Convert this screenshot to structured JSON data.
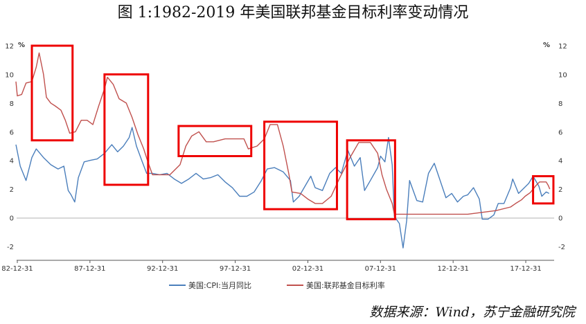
{
  "title": "图 1:1982-2019 年美国联邦基金目标利率变动情况",
  "source": "数据来源：Wind，苏宁金融研究院",
  "chart_data": {
    "type": "line",
    "title": "图 1:1982-2019 年美国联邦基金目标利率变动情况",
    "y_unit": "%",
    "ylim": [
      -2.5,
      12
    ],
    "y_ticks": [
      -2,
      0,
      2,
      4,
      6,
      8,
      10,
      12
    ],
    "x_ticks": [
      "82-12-31",
      "87-12-31",
      "92-12-31",
      "97-12-31",
      "02-12-31",
      "07-12-31",
      "12-12-31",
      "17-12-31"
    ],
    "grid": false,
    "legend_position": "bottom",
    "series": [
      {
        "name": "美国:CPI:当月同比",
        "color": "#4a7ebb",
        "points": [
          [
            1982.9,
            5.1
          ],
          [
            1983.2,
            3.6
          ],
          [
            1983.6,
            2.6
          ],
          [
            1984.0,
            4.2
          ],
          [
            1984.3,
            4.8
          ],
          [
            1984.8,
            4.2
          ],
          [
            1985.3,
            3.7
          ],
          [
            1985.8,
            3.4
          ],
          [
            1986.2,
            3.6
          ],
          [
            1986.5,
            1.9
          ],
          [
            1986.7,
            1.6
          ],
          [
            1986.95,
            1.1
          ],
          [
            1987.2,
            2.8
          ],
          [
            1987.6,
            3.9
          ],
          [
            1988.0,
            4.0
          ],
          [
            1988.5,
            4.1
          ],
          [
            1989.0,
            4.5
          ],
          [
            1989.5,
            5.1
          ],
          [
            1989.9,
            4.6
          ],
          [
            1990.3,
            5.0
          ],
          [
            1990.7,
            5.6
          ],
          [
            1990.9,
            6.3
          ],
          [
            1991.2,
            5.0
          ],
          [
            1991.6,
            3.9
          ],
          [
            1991.9,
            3.1
          ],
          [
            1992.3,
            3.1
          ],
          [
            1992.8,
            3.0
          ],
          [
            1993.3,
            3.1
          ],
          [
            1993.8,
            2.7
          ],
          [
            1994.3,
            2.4
          ],
          [
            1994.8,
            2.7
          ],
          [
            1995.3,
            3.1
          ],
          [
            1995.8,
            2.7
          ],
          [
            1996.3,
            2.8
          ],
          [
            1996.8,
            3.0
          ],
          [
            1997.3,
            2.5
          ],
          [
            1997.8,
            2.1
          ],
          [
            1998.3,
            1.5
          ],
          [
            1998.8,
            1.5
          ],
          [
            1999.3,
            1.8
          ],
          [
            1999.8,
            2.6
          ],
          [
            2000.2,
            3.4
          ],
          [
            2000.7,
            3.5
          ],
          [
            2001.3,
            3.2
          ],
          [
            2001.8,
            2.6
          ],
          [
            2002.0,
            1.1
          ],
          [
            2002.4,
            1.5
          ],
          [
            2002.8,
            2.2
          ],
          [
            2003.2,
            2.9
          ],
          [
            2003.5,
            2.1
          ],
          [
            2004.0,
            1.9
          ],
          [
            2004.5,
            3.1
          ],
          [
            2004.9,
            3.5
          ],
          [
            2005.3,
            3.1
          ],
          [
            2005.75,
            4.7
          ],
          [
            2006.2,
            3.6
          ],
          [
            2006.6,
            4.2
          ],
          [
            2006.9,
            1.9
          ],
          [
            2007.3,
            2.6
          ],
          [
            2007.8,
            3.5
          ],
          [
            2008.0,
            4.3
          ],
          [
            2008.3,
            3.9
          ],
          [
            2008.55,
            5.6
          ],
          [
            2008.8,
            3.7
          ],
          [
            2008.95,
            0.1
          ],
          [
            2009.3,
            -0.4
          ],
          [
            2009.55,
            -2.1
          ],
          [
            2009.8,
            -0.2
          ],
          [
            2010.0,
            2.6
          ],
          [
            2010.5,
            1.2
          ],
          [
            2010.9,
            1.1
          ],
          [
            2011.3,
            3.1
          ],
          [
            2011.7,
            3.8
          ],
          [
            2012.0,
            2.9
          ],
          [
            2012.5,
            1.4
          ],
          [
            2012.9,
            1.7
          ],
          [
            2013.3,
            1.1
          ],
          [
            2013.7,
            1.5
          ],
          [
            2014.0,
            1.6
          ],
          [
            2014.4,
            2.1
          ],
          [
            2014.8,
            1.3
          ],
          [
            2015.0,
            -0.1
          ],
          [
            2015.4,
            -0.1
          ],
          [
            2015.8,
            0.2
          ],
          [
            2016.1,
            1.0
          ],
          [
            2016.5,
            1.0
          ],
          [
            2016.95,
            2.1
          ],
          [
            2017.1,
            2.7
          ],
          [
            2017.5,
            1.7
          ],
          [
            2017.9,
            2.1
          ],
          [
            2018.2,
            2.4
          ],
          [
            2018.5,
            2.9
          ],
          [
            2018.9,
            2.2
          ],
          [
            2019.1,
            1.5
          ],
          [
            2019.4,
            1.8
          ],
          [
            2019.6,
            1.7
          ]
        ]
      },
      {
        "name": "美国:联邦基金目标利率",
        "color": "#c0504d",
        "points": [
          [
            1982.9,
            9.5
          ],
          [
            1983.0,
            8.5
          ],
          [
            1983.3,
            8.6
          ],
          [
            1983.6,
            9.4
          ],
          [
            1984.0,
            9.5
          ],
          [
            1984.3,
            10.5
          ],
          [
            1984.5,
            11.5
          ],
          [
            1984.8,
            10.0
          ],
          [
            1985.0,
            8.4
          ],
          [
            1985.3,
            8.0
          ],
          [
            1985.6,
            7.8
          ],
          [
            1986.0,
            7.5
          ],
          [
            1986.3,
            6.8
          ],
          [
            1986.6,
            5.9
          ],
          [
            1987.0,
            6.0
          ],
          [
            1987.4,
            6.8
          ],
          [
            1987.8,
            6.8
          ],
          [
            1988.2,
            6.5
          ],
          [
            1988.6,
            7.8
          ],
          [
            1989.0,
            9.0
          ],
          [
            1989.2,
            9.8
          ],
          [
            1989.6,
            9.3
          ],
          [
            1990.0,
            8.3
          ],
          [
            1990.5,
            8.0
          ],
          [
            1990.9,
            7.0
          ],
          [
            1991.3,
            5.8
          ],
          [
            1991.7,
            4.8
          ],
          [
            1991.95,
            4.0
          ],
          [
            1992.3,
            3.0
          ],
          [
            1993.0,
            3.0
          ],
          [
            1993.5,
            3.0
          ],
          [
            1994.2,
            3.7
          ],
          [
            1994.6,
            5.0
          ],
          [
            1995.0,
            5.7
          ],
          [
            1995.5,
            6.0
          ],
          [
            1996.0,
            5.3
          ],
          [
            1996.5,
            5.3
          ],
          [
            1997.3,
            5.5
          ],
          [
            1998.0,
            5.5
          ],
          [
            1998.6,
            5.5
          ],
          [
            1998.9,
            4.8
          ],
          [
            1999.5,
            5.0
          ],
          [
            2000.0,
            5.5
          ],
          [
            2000.4,
            6.5
          ],
          [
            2000.9,
            6.5
          ],
          [
            2001.3,
            5.0
          ],
          [
            2001.7,
            3.0
          ],
          [
            2001.9,
            1.8
          ],
          [
            2002.5,
            1.7
          ],
          [
            2003.0,
            1.3
          ],
          [
            2003.5,
            1.0
          ],
          [
            2004.0,
            1.0
          ],
          [
            2004.6,
            1.5
          ],
          [
            2005.2,
            2.8
          ],
          [
            2005.9,
            4.2
          ],
          [
            2006.5,
            5.25
          ],
          [
            2007.3,
            5.25
          ],
          [
            2007.8,
            4.5
          ],
          [
            2008.1,
            3.0
          ],
          [
            2008.4,
            2.0
          ],
          [
            2008.8,
            1.0
          ],
          [
            2008.95,
            0.25
          ],
          [
            2010.0,
            0.25
          ],
          [
            2012.0,
            0.25
          ],
          [
            2014.0,
            0.25
          ],
          [
            2015.95,
            0.5
          ],
          [
            2016.95,
            0.75
          ],
          [
            2017.3,
            1.0
          ],
          [
            2017.7,
            1.25
          ],
          [
            2017.95,
            1.5
          ],
          [
            2018.3,
            1.75
          ],
          [
            2018.7,
            2.25
          ],
          [
            2018.95,
            2.5
          ],
          [
            2019.4,
            2.5
          ],
          [
            2019.55,
            2.25
          ],
          [
            2019.65,
            2.0
          ]
        ]
      }
    ],
    "annotations": [
      {
        "type": "highlight-box",
        "color": "#ee0000",
        "x_range": [
          1984.0,
          1986.8
        ],
        "y_range": [
          5.4,
          12.0
        ]
      },
      {
        "type": "highlight-box",
        "color": "#ee0000",
        "x_range": [
          1989.0,
          1992.0
        ],
        "y_range": [
          2.3,
          10.0
        ]
      },
      {
        "type": "highlight-box",
        "color": "#ee0000",
        "x_range": [
          1994.1,
          1999.1
        ],
        "y_range": [
          4.3,
          6.4
        ]
      },
      {
        "type": "highlight-box",
        "color": "#ee0000",
        "x_range": [
          2000.0,
          2005.0
        ],
        "y_range": [
          0.6,
          6.7
        ]
      },
      {
        "type": "highlight-box",
        "color": "#ee0000",
        "x_range": [
          2005.7,
          2009.0
        ],
        "y_range": [
          -0.1,
          5.4
        ]
      },
      {
        "type": "highlight-box",
        "color": "#ee0000",
        "x_range": [
          2018.5,
          2019.9
        ],
        "y_range": [
          1.0,
          2.9
        ]
      }
    ]
  }
}
